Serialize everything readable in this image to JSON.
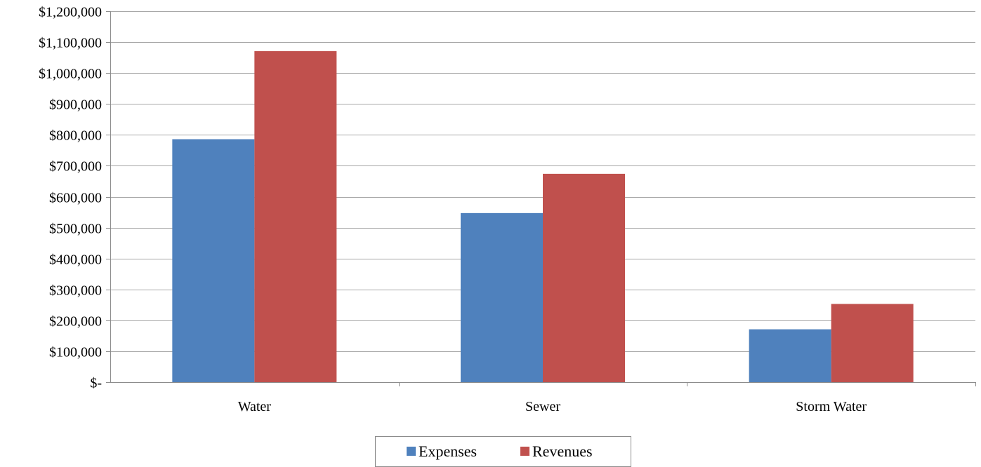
{
  "chart_data": {
    "type": "bar",
    "categories": [
      "Water",
      "Sewer",
      "Storm Water"
    ],
    "series": [
      {
        "name": "Expenses",
        "color": "#4f81bd",
        "values": [
          786000,
          547000,
          171000
        ]
      },
      {
        "name": "Revenues",
        "color": "#c0504d",
        "values": [
          1071000,
          674000,
          253000
        ]
      }
    ],
    "ylim": [
      0,
      1200000
    ],
    "ytick_values": [
      0,
      100000,
      200000,
      300000,
      400000,
      500000,
      600000,
      700000,
      800000,
      900000,
      1000000,
      1100000,
      1200000
    ],
    "ytick_labels": [
      "$-",
      "$100,000",
      "$200,000",
      "$300,000",
      "$400,000",
      "$500,000",
      "$600,000",
      "$700,000",
      "$800,000",
      "$900,000",
      "$1,000,000",
      "$1,100,000",
      "$1,200,000"
    ],
    "title": "",
    "xlabel": "",
    "ylabel": "",
    "grid": true,
    "legend_position": "bottom"
  }
}
